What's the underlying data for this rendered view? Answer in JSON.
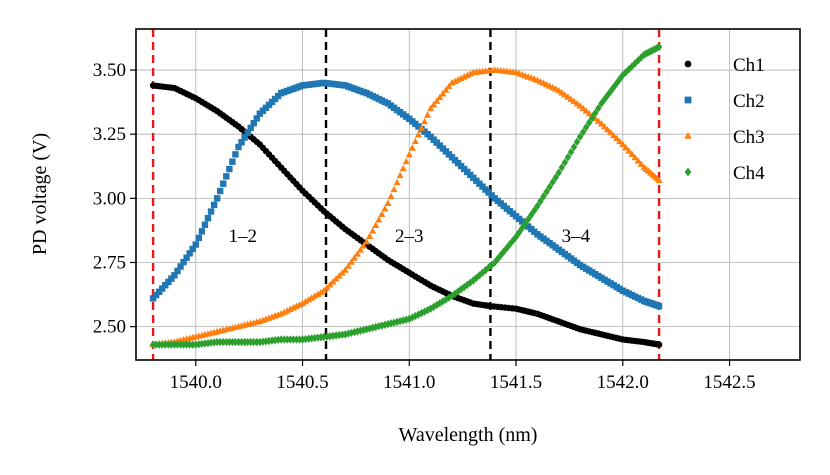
{
  "chart_data": {
    "type": "scatter",
    "title": "",
    "xlabel": "Wavelength (nm)",
    "ylabel": "PD voltage (V)",
    "xlim": [
      1539.72,
      1542.83
    ],
    "ylim": [
      2.37,
      3.66
    ],
    "xticks": [
      1540.0,
      1540.5,
      1541.0,
      1541.5,
      1542.0,
      1542.5
    ],
    "xtick_labels": [
      "1540.0",
      "1540.5",
      "1541.0",
      "1541.5",
      "1542.0",
      "1542.5"
    ],
    "yticks": [
      2.5,
      2.75,
      3.0,
      3.25,
      3.5
    ],
    "ytick_labels": [
      "2.50",
      "2.75",
      "3.00",
      "3.25",
      "3.50"
    ],
    "grid": true,
    "legend_position": "top-right",
    "series": [
      {
        "name": "Ch1",
        "color": "#000000",
        "marker": "circle",
        "x": [
          1539.8,
          1539.9,
          1540.0,
          1540.1,
          1540.2,
          1540.3,
          1540.4,
          1540.5,
          1540.6,
          1540.7,
          1540.8,
          1540.9,
          1541.0,
          1541.1,
          1541.2,
          1541.3,
          1541.38,
          1541.5,
          1541.6,
          1541.7,
          1541.8,
          1541.9,
          1542.0,
          1542.1,
          1542.17
        ],
        "y": [
          3.44,
          3.43,
          3.39,
          3.34,
          3.28,
          3.21,
          3.12,
          3.03,
          2.95,
          2.88,
          2.82,
          2.76,
          2.71,
          2.66,
          2.62,
          2.59,
          2.58,
          2.57,
          2.55,
          2.52,
          2.49,
          2.47,
          2.45,
          2.44,
          2.43
        ]
      },
      {
        "name": "Ch2",
        "color": "#1f77b4",
        "marker": "square",
        "x": [
          1539.8,
          1539.9,
          1540.0,
          1540.1,
          1540.2,
          1540.3,
          1540.4,
          1540.5,
          1540.6,
          1540.7,
          1540.8,
          1540.9,
          1541.0,
          1541.1,
          1541.2,
          1541.3,
          1541.4,
          1541.5,
          1541.6,
          1541.7,
          1541.8,
          1541.9,
          1542.0,
          1542.1,
          1542.17
        ],
        "y": [
          2.61,
          2.7,
          2.82,
          3.0,
          3.2,
          3.33,
          3.41,
          3.44,
          3.45,
          3.44,
          3.41,
          3.37,
          3.31,
          3.24,
          3.16,
          3.08,
          3.0,
          2.93,
          2.86,
          2.8,
          2.74,
          2.69,
          2.64,
          2.6,
          2.58
        ]
      },
      {
        "name": "Ch3",
        "color": "#ff7f0e",
        "marker": "triangle",
        "x": [
          1539.8,
          1539.9,
          1540.0,
          1540.1,
          1540.2,
          1540.3,
          1540.4,
          1540.5,
          1540.6,
          1540.7,
          1540.8,
          1540.9,
          1541.0,
          1541.1,
          1541.2,
          1541.3,
          1541.4,
          1541.5,
          1541.6,
          1541.7,
          1541.8,
          1541.9,
          1542.0,
          1542.1,
          1542.17
        ],
        "y": [
          2.43,
          2.44,
          2.46,
          2.48,
          2.5,
          2.52,
          2.55,
          2.59,
          2.64,
          2.72,
          2.83,
          2.98,
          3.17,
          3.35,
          3.45,
          3.49,
          3.5,
          3.49,
          3.46,
          3.42,
          3.36,
          3.29,
          3.21,
          3.12,
          3.07
        ]
      },
      {
        "name": "Ch4",
        "color": "#2ca02c",
        "marker": "diamond",
        "x": [
          1539.8,
          1539.9,
          1540.0,
          1540.1,
          1540.2,
          1540.3,
          1540.4,
          1540.5,
          1540.6,
          1540.7,
          1540.8,
          1540.9,
          1541.0,
          1541.1,
          1541.2,
          1541.3,
          1541.4,
          1541.5,
          1541.6,
          1541.7,
          1541.8,
          1541.9,
          1542.0,
          1542.1,
          1542.17
        ],
        "y": [
          2.43,
          2.43,
          2.43,
          2.44,
          2.44,
          2.44,
          2.45,
          2.45,
          2.46,
          2.47,
          2.49,
          2.51,
          2.53,
          2.57,
          2.62,
          2.68,
          2.75,
          2.85,
          2.97,
          3.1,
          3.24,
          3.37,
          3.48,
          3.56,
          3.59
        ]
      }
    ],
    "vlines": [
      {
        "x": 1539.8,
        "color": "#e41a1c",
        "style": "dashed"
      },
      {
        "x": 1540.61,
        "color": "#000000",
        "style": "dashed"
      },
      {
        "x": 1541.38,
        "color": "#000000",
        "style": "dashed"
      },
      {
        "x": 1542.17,
        "color": "#e41a1c",
        "style": "dashed"
      }
    ],
    "annotations": [
      {
        "text": "1–2",
        "x": 1540.22,
        "y": 2.83
      },
      {
        "text": "2–3",
        "x": 1541.0,
        "y": 2.83
      },
      {
        "text": "3–4",
        "x": 1541.78,
        "y": 2.83
      }
    ]
  }
}
